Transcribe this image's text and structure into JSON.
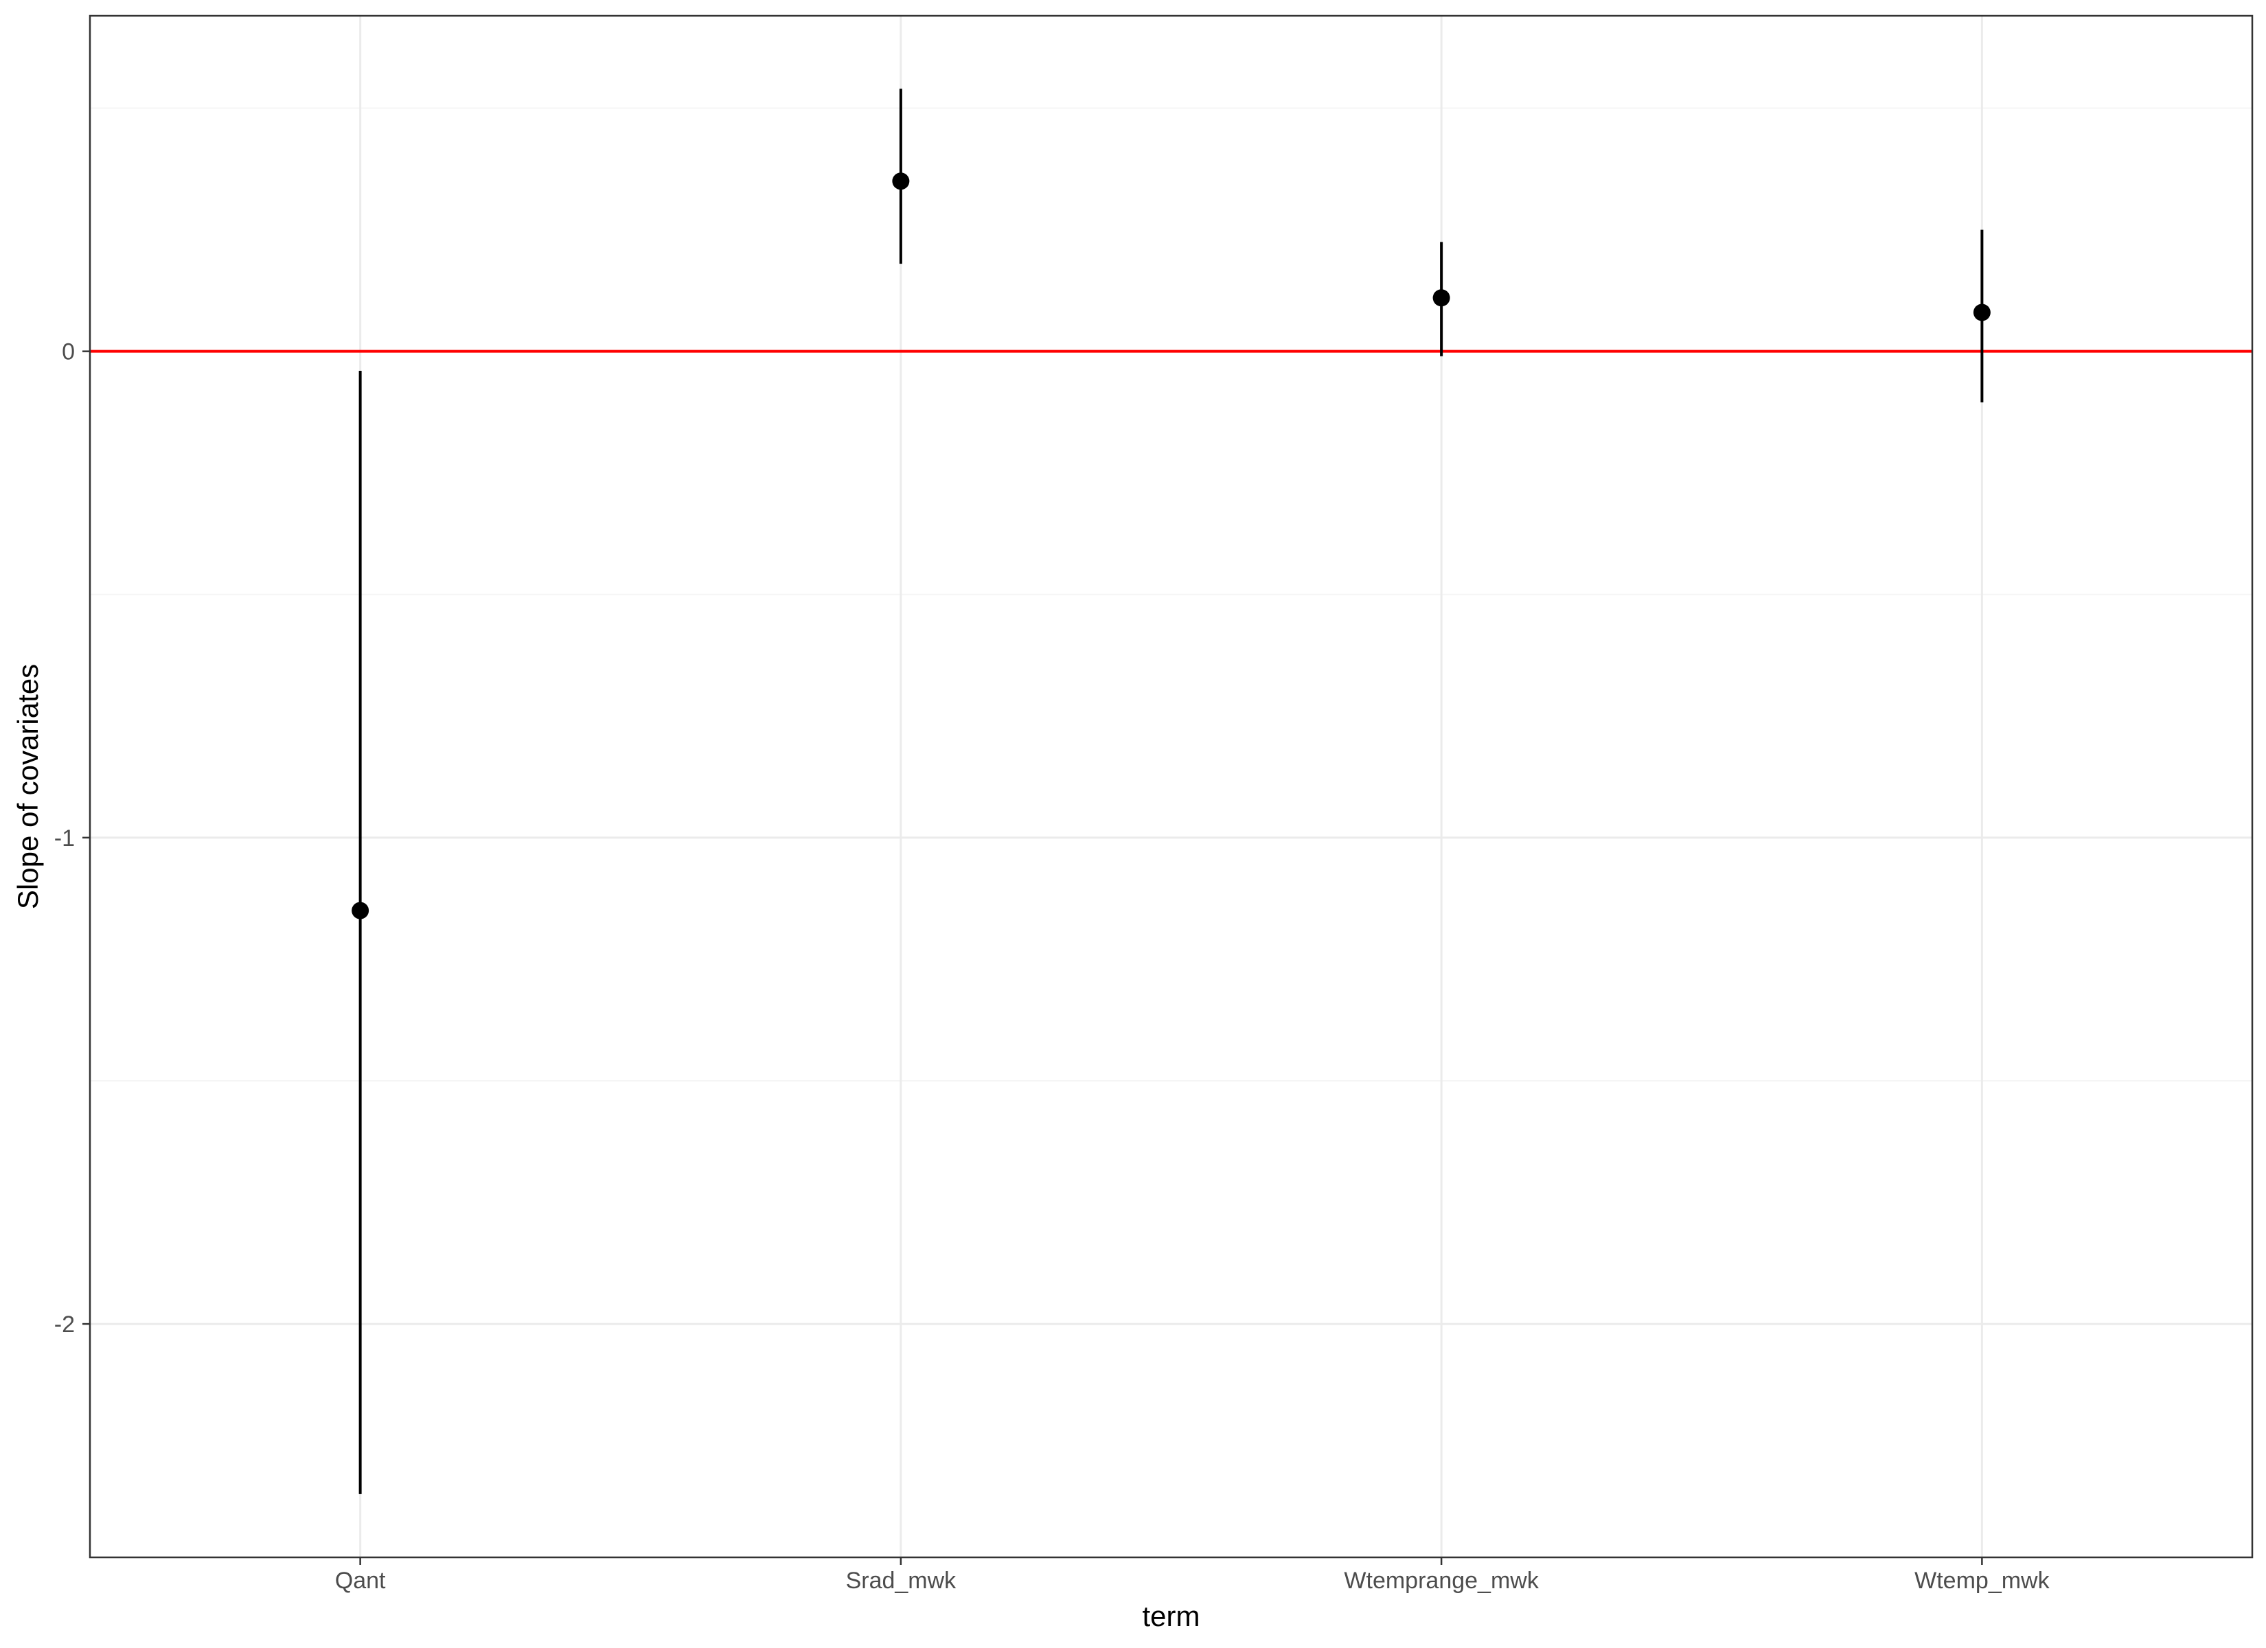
{
  "chart_data": {
    "type": "scatter",
    "subtype": "point-range",
    "title": "",
    "xlabel": "term",
    "ylabel": "Slope of covariates",
    "categories": [
      "Qant",
      "Srad_mwk",
      "Wtemprange_mwk",
      "Wtemp_mwk"
    ],
    "points": [
      {
        "term": "Qant",
        "estimate": -1.15,
        "lower": -2.35,
        "upper": -0.04
      },
      {
        "term": "Srad_mwk",
        "estimate": 0.35,
        "lower": 0.18,
        "upper": 0.54
      },
      {
        "term": "Wtemprange_mwk",
        "estimate": 0.11,
        "lower": -0.01,
        "upper": 0.225
      },
      {
        "term": "Wtemp_mwk",
        "estimate": 0.08,
        "lower": -0.105,
        "upper": 0.25
      }
    ],
    "ylim": [
      -2.48,
      0.69
    ],
    "yticks": [
      -2,
      -1,
      0
    ],
    "ytick_labels": [
      "-2",
      "-1",
      "0"
    ],
    "reference_line": {
      "y": 0,
      "color": "#ff0000"
    },
    "grid": true,
    "legend": "none",
    "colors": {
      "points": "#000000",
      "grid_major": "#ebebeb",
      "grid_minor": "#f5f5f5",
      "panel_border": "#333333",
      "tick_label": "#4d4d4d"
    }
  }
}
